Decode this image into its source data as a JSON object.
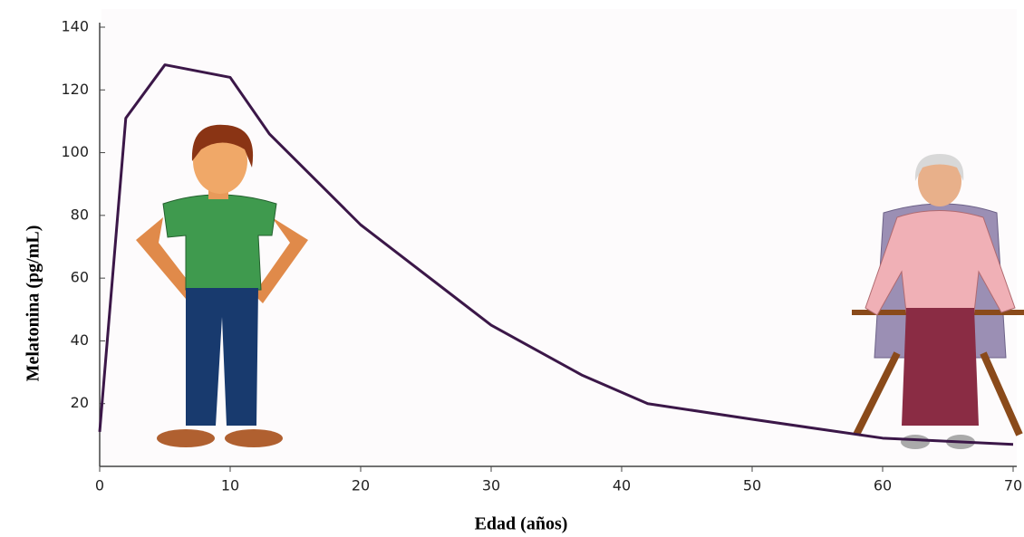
{
  "chart_data": {
    "type": "line",
    "x_label": "Edad (años)",
    "y_label": "Melatonina (pg/mL)",
    "x": [
      0,
      2,
      5,
      10,
      13,
      20,
      30,
      37,
      42,
      50,
      60,
      70
    ],
    "values": [
      11,
      111,
      128,
      124,
      106,
      77,
      45,
      29,
      20,
      15,
      9,
      7
    ],
    "color": "#3b1748",
    "xlim": [
      0,
      70
    ],
    "xticks": [
      0,
      10,
      20,
      30,
      40,
      50,
      60,
      70
    ],
    "ylim": [
      0,
      140
    ],
    "yticks": [
      20,
      40,
      60,
      80,
      100,
      120,
      140
    ]
  }
}
